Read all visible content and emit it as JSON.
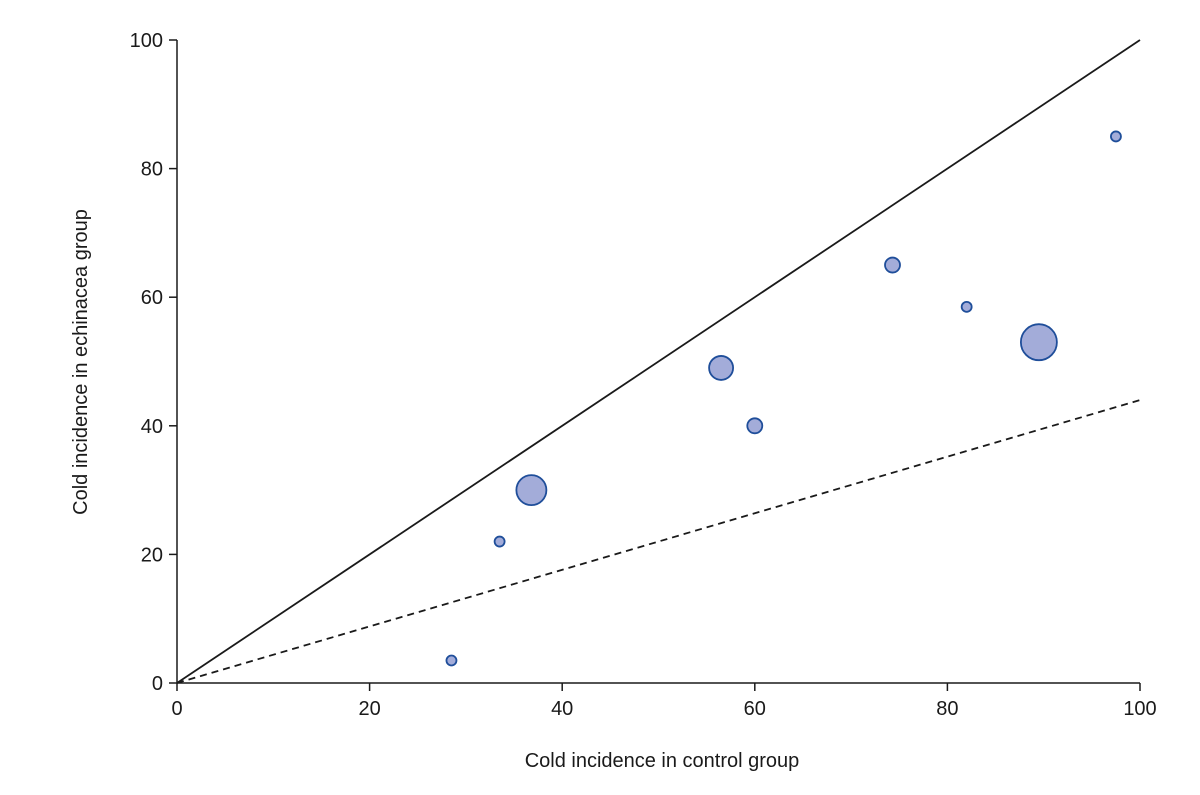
{
  "chart_data": {
    "type": "scatter",
    "title": "",
    "xlabel": "Cold incidence in control group",
    "ylabel": "Cold incidence in echinacea group",
    "xlim": [
      0,
      100
    ],
    "ylim": [
      0,
      100
    ],
    "xticks": [
      "0",
      "20",
      "40",
      "60",
      "80",
      "100"
    ],
    "yticks": [
      "0",
      "20",
      "40",
      "60",
      "80",
      "100"
    ],
    "grid": false,
    "colors": {
      "point_fill": "#a3acd9",
      "point_stroke": "#1f4e9a",
      "line": "#1a1a1a"
    },
    "points": [
      {
        "x": 28.5,
        "y": 3.5,
        "size": "small"
      },
      {
        "x": 33.5,
        "y": 22,
        "size": "small"
      },
      {
        "x": 36.8,
        "y": 30,
        "size": "large"
      },
      {
        "x": 56.5,
        "y": 49,
        "size": "medium-large"
      },
      {
        "x": 60,
        "y": 40,
        "size": "medium"
      },
      {
        "x": 74.3,
        "y": 65,
        "size": "medium"
      },
      {
        "x": 82,
        "y": 58.5,
        "size": "small"
      },
      {
        "x": 89.5,
        "y": 53,
        "size": "very-large"
      },
      {
        "x": 97.5,
        "y": 85,
        "size": "small"
      }
    ],
    "reference_lines": [
      {
        "style": "solid",
        "from": [
          0,
          0
        ],
        "to": [
          100,
          100
        ]
      },
      {
        "style": "dashed",
        "from": [
          0,
          0
        ],
        "to": [
          100,
          44
        ]
      }
    ]
  }
}
